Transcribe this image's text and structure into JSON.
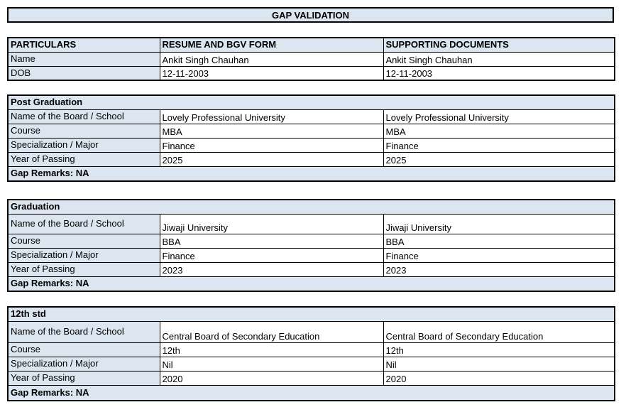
{
  "title": "GAP VALIDATION",
  "colors": {
    "header_fill": "#dce6f1",
    "border": "#000000",
    "text": "#000000"
  },
  "particulars": {
    "headers": [
      "PARTICULARS",
      "RESUME AND BGV FORM",
      "SUPPORTING DOCUMENTS"
    ],
    "rows": [
      {
        "label": "Name",
        "resume": "Ankit Singh Chauhan",
        "supporting": "Ankit Singh Chauhan"
      },
      {
        "label": "DOB",
        "resume": "12-11-2003",
        "supporting": "12-11-2003"
      }
    ]
  },
  "sections": [
    {
      "title": "Post Graduation",
      "rows": [
        {
          "label": "Name of the Board / School",
          "resume": "Lovely Professional University",
          "supporting": "Lovely Professional University"
        },
        {
          "label": "Course",
          "resume": "MBA",
          "supporting": "MBA"
        },
        {
          "label": "Specialization / Major",
          "resume": "Finance",
          "supporting": "Finance"
        },
        {
          "label": "Year of Passing",
          "resume": "2025",
          "supporting": "2025"
        }
      ],
      "gap_remarks": "Gap Remarks: NA"
    },
    {
      "title": "Graduation",
      "rows": [
        {
          "label": "Name of the Board / School",
          "resume": "Jiwaji University",
          "supporting": "Jiwaji University"
        },
        {
          "label": "Course",
          "resume": "BBA",
          "supporting": "BBA"
        },
        {
          "label": "Specialization / Major",
          "resume": "Finance",
          "supporting": "Finance"
        },
        {
          "label": "Year of Passing",
          "resume": "2023",
          "supporting": "2023"
        }
      ],
      "gap_remarks": "Gap Remarks: NA"
    },
    {
      "title": "12th std",
      "rows": [
        {
          "label": "Name of the Board / School",
          "resume": "Central Board of Secondary Education",
          "supporting": "Central Board of Secondary Education"
        },
        {
          "label": "Course",
          "resume": "12th",
          "supporting": "12th"
        },
        {
          "label": "Specialization / Major",
          "resume": "Nil",
          "supporting": "Nil"
        },
        {
          "label": "Year of Passing",
          "resume": "2020",
          "supporting": "2020"
        }
      ],
      "gap_remarks": "Gap Remarks: NA"
    }
  ]
}
